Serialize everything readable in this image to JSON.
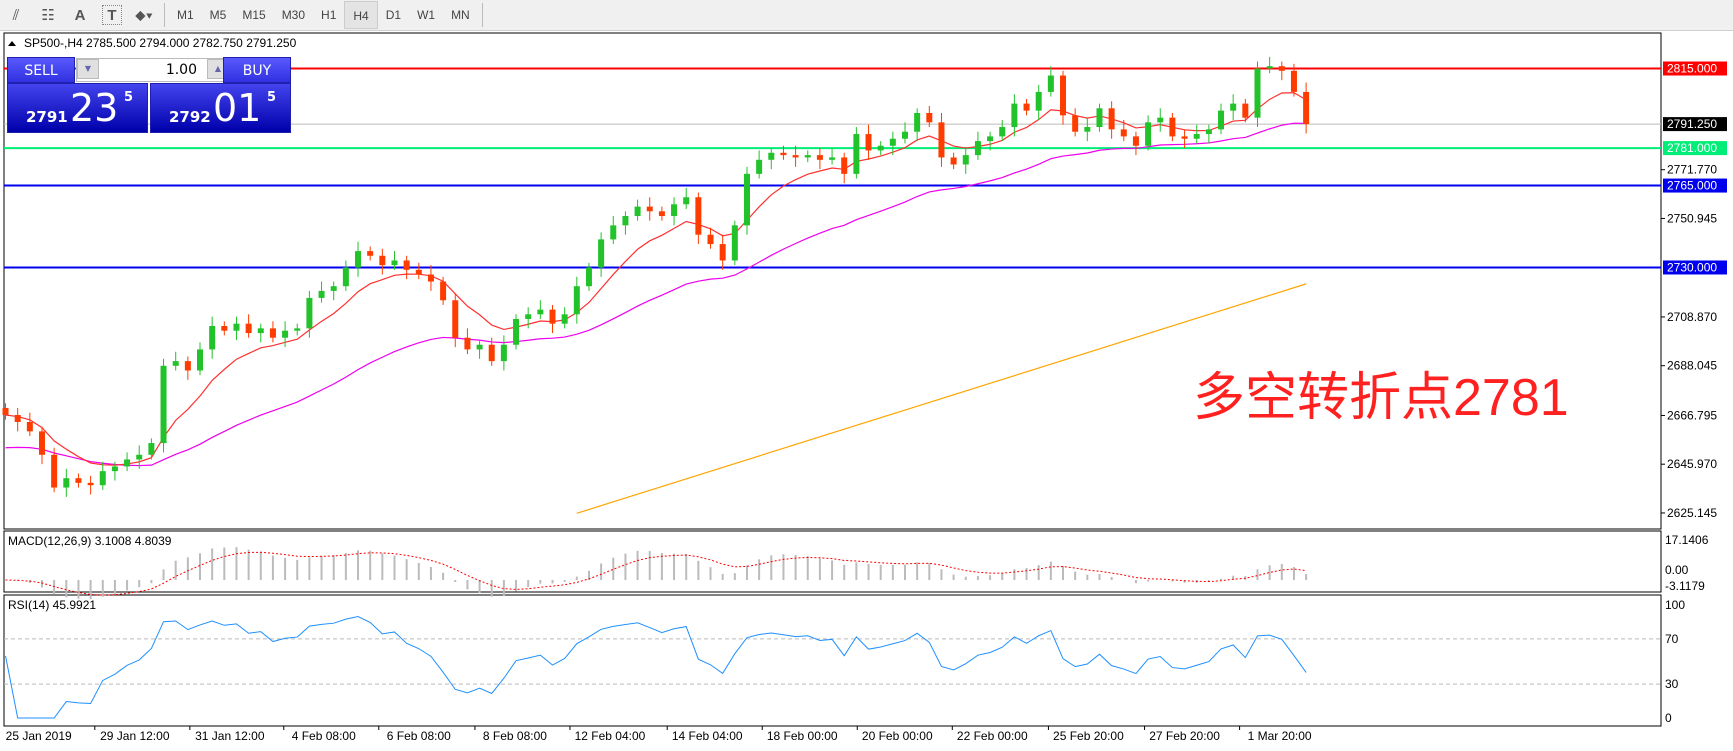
{
  "toolbar": {
    "icons": [
      "indicators-icon",
      "fibonacci-icon",
      "text-icon",
      "text-label-icon",
      "arrows-icon"
    ],
    "text_icon": "A",
    "label_icon": "T",
    "timeframes": [
      "M1",
      "M5",
      "M15",
      "M30",
      "H1",
      "H4",
      "D1",
      "W1",
      "MN"
    ],
    "active_timeframe": "H4"
  },
  "chart": {
    "header": "SP500-,H4  2785.500 2794.000 2782.750 2791.250",
    "symbol": "SP500-",
    "timeframe": "H4",
    "ohlc": {
      "open": 2785.5,
      "high": 2794.0,
      "low": 2782.75,
      "close": 2791.25
    }
  },
  "trade_panel": {
    "sell_label": "SELL",
    "buy_label": "BUY",
    "lot": "1.00",
    "sell_price": {
      "big": "2791",
      "main": "23",
      "sup": "5"
    },
    "buy_price": {
      "big": "2792",
      "main": "01",
      "sup": "5"
    }
  },
  "annotation": "多空转折点2781",
  "colors": {
    "bull": "#21c22a",
    "bear": "#ff3c00",
    "ma_fast": "#ff3030",
    "ma_mid": "#ee00ee",
    "ma_slow": "#ffa500",
    "line_2815": "#ff0000",
    "line_2781": "#00ee77",
    "line_support": "#0000ee",
    "current": "#000000"
  },
  "chart_data": {
    "type": "candlestick",
    "price_axis": [
      "2815.000",
      "2791.250",
      "2781.000",
      "2771.770",
      "2765.000",
      "2750.945",
      "2730.000",
      "2708.870",
      "2688.045",
      "2666.795",
      "2645.970",
      "2625.145"
    ],
    "ylim": [
      2625.145,
      2815.0
    ],
    "closes": [
      2667,
      2664,
      2660,
      2650,
      2636,
      2640,
      2638,
      2637,
      2643,
      2645,
      2648,
      2650,
      2655,
      2688,
      2690,
      2686,
      2695,
      2705,
      2703,
      2706,
      2702,
      2704,
      2700,
      2703,
      2704,
      2717,
      2720,
      2722,
      2730,
      2737,
      2735,
      2731,
      2733,
      2729,
      2727,
      2724,
      2716,
      2700,
      2695,
      2697,
      2690,
      2697,
      2708,
      2710,
      2712,
      2706,
      2710,
      2722,
      2730,
      2742,
      2748,
      2752,
      2756,
      2754,
      2752,
      2757,
      2760,
      2744,
      2740,
      2733,
      2748,
      2770,
      2776,
      2779,
      2778,
      2777,
      2778,
      2776,
      2777,
      2770,
      2787,
      2780,
      2782,
      2785,
      2788,
      2796,
      2792,
      2777,
      2774,
      2778,
      2784,
      2786,
      2790,
      2800,
      2797,
      2805,
      2812,
      2795,
      2788,
      2790,
      2798,
      2789,
      2786,
      2782,
      2792,
      2794,
      2786,
      2785,
      2787,
      2789,
      2797,
      2800,
      2794,
      2815,
      2816,
      2814,
      2805,
      2791.25
    ],
    "ma_slow": [
      [
        47,
        2625
      ],
      [
        107,
        2723
      ]
    ],
    "horizontal_lines": [
      {
        "price": 2815.0,
        "label": "2815.000",
        "color": "#ff0000"
      },
      {
        "price": 2791.25,
        "label": "2791.250",
        "color": "#000000"
      },
      {
        "price": 2781.0,
        "label": "2781.000",
        "color": "#00ee77"
      },
      {
        "price": 2765.0,
        "label": "2765.000",
        "color": "#0000ee"
      },
      {
        "price": 2730.0,
        "label": "2730.000",
        "color": "#0000ee"
      }
    ],
    "date_labels": [
      "25 Jan 2019",
      "29 Jan 12:00",
      "31 Jan 12:00",
      "4 Feb 08:00",
      "6 Feb 08:00",
      "8 Feb 08:00",
      "12 Feb 04:00",
      "14 Feb 04:00",
      "18 Feb 00:00",
      "20 Feb 00:00",
      "22 Feb 00:00",
      "25 Feb 20:00",
      "27 Feb 20:00",
      "1 Mar 20:00"
    ],
    "macd": {
      "label": "MACD(12,26,9) 3.1008 4.8039",
      "axis": [
        "17.1406",
        "0.00",
        "-3.1179"
      ]
    },
    "rsi": {
      "label": "RSI(14) 45.9921",
      "axis": [
        "100",
        "70",
        "30",
        "0"
      ],
      "levels": [
        70,
        30
      ]
    }
  }
}
